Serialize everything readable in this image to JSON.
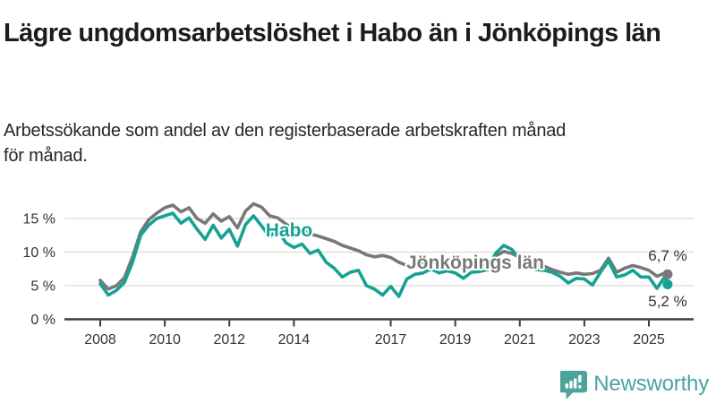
{
  "header": {
    "title": "Lägre ungdomsarbetslöshet i Habo än i Jönköpings län",
    "subtitle": "Arbetssökande som andel av den registerbaserade arbetskraften månad för månad."
  },
  "branding": {
    "name": "Newsworthy",
    "color": "#4ba49c",
    "icon": "bar-chart-speech-bubble-icon"
  },
  "chart_data": {
    "type": "line",
    "title": "Lägre ungdomsarbetslöshet i Habo än i Jönköpings län",
    "xlabel": "",
    "ylabel": "",
    "unit": "%",
    "grid": "horizontal",
    "xlim": [
      2008,
      2025.9
    ],
    "ylim": [
      0,
      17.5
    ],
    "x_ticks": [
      2008,
      2010,
      2012,
      2014,
      2017,
      2019,
      2021,
      2023,
      2025
    ],
    "y_ticks": [
      0,
      5,
      10,
      15
    ],
    "y_tick_labels": [
      "0 %",
      "5 %",
      "10 %",
      "15 %"
    ],
    "x": [
      2008,
      2008.25,
      2008.5,
      2008.75,
      2009,
      2009.25,
      2009.5,
      2009.75,
      2010,
      2010.25,
      2010.5,
      2010.75,
      2011,
      2011.25,
      2011.5,
      2011.75,
      2012,
      2012.25,
      2012.5,
      2012.75,
      2013,
      2013.25,
      2013.5,
      2013.75,
      2014,
      2014.25,
      2014.5,
      2014.75,
      2015,
      2015.25,
      2015.5,
      2015.75,
      2016,
      2016.25,
      2016.5,
      2016.75,
      2017,
      2017.25,
      2017.5,
      2017.75,
      2018,
      2018.25,
      2018.5,
      2018.75,
      2019,
      2019.25,
      2019.5,
      2019.75,
      2020,
      2020.25,
      2020.5,
      2020.75,
      2021,
      2021.25,
      2021.5,
      2021.75,
      2022,
      2022.25,
      2022.5,
      2022.75,
      2023,
      2023.25,
      2023.5,
      2023.75,
      2024,
      2024.25,
      2024.5,
      2024.75,
      2025,
      2025.25,
      2025.5,
      2025.58
    ],
    "series": [
      {
        "name": "Jönköpings län",
        "color": "#787878",
        "end_label": "6,7 %",
        "end_value": 6.7,
        "values": [
          5.8,
          4.5,
          5.0,
          6.2,
          9.3,
          13.0,
          14.8,
          15.8,
          16.6,
          17.0,
          16.0,
          16.6,
          15.0,
          14.3,
          15.7,
          14.6,
          15.3,
          13.6,
          16.1,
          17.2,
          16.7,
          15.4,
          15.1,
          14.2,
          13.3,
          13.5,
          12.7,
          12.4,
          12.0,
          11.6,
          11.0,
          10.6,
          10.2,
          9.6,
          9.3,
          9.5,
          9.2,
          8.5,
          8.0,
          8.2,
          8.4,
          8.6,
          8.2,
          8.1,
          7.9,
          7.6,
          7.8,
          7.9,
          8.2,
          9.4,
          10.1,
          9.8,
          9.2,
          8.7,
          8.2,
          7.9,
          7.4,
          7.0,
          6.7,
          6.9,
          6.7,
          6.8,
          7.3,
          9.1,
          7.0,
          7.6,
          8.0,
          7.7,
          7.3,
          6.4,
          6.9,
          6.7
        ]
      },
      {
        "name": "Habo",
        "color": "#14a393",
        "end_label": "5,2 %",
        "end_value": 5.2,
        "values": [
          5.3,
          3.6,
          4.3,
          5.5,
          8.5,
          12.5,
          14.0,
          15.0,
          15.4,
          15.8,
          14.3,
          15.1,
          13.4,
          11.9,
          14.0,
          12.1,
          13.4,
          10.9,
          14.1,
          15.4,
          13.9,
          12.3,
          13.4,
          11.4,
          10.7,
          11.2,
          9.8,
          10.3,
          8.5,
          7.6,
          6.3,
          7.0,
          7.3,
          5.0,
          4.5,
          3.6,
          4.9,
          3.4,
          6.0,
          6.7,
          6.9,
          7.5,
          6.9,
          7.2,
          6.9,
          6.1,
          7.0,
          7.1,
          7.4,
          9.8,
          11.0,
          10.4,
          9.0,
          8.1,
          7.4,
          7.3,
          7.0,
          6.4,
          5.4,
          6.1,
          6.0,
          5.1,
          7.0,
          8.7,
          6.3,
          6.6,
          7.3,
          6.3,
          6.3,
          4.6,
          6.4,
          5.2
        ]
      }
    ]
  }
}
